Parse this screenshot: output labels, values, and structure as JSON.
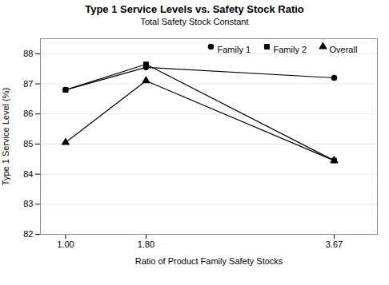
{
  "chart_data": {
    "type": "line",
    "title": "Type 1 Service Levels vs. Safety Stock Ratio",
    "subtitle": "Total Safety Stock Constant",
    "xlabel": "Ratio of Product Family Safety Stocks",
    "ylabel": "Type 1 Service Level (%)",
    "x": [
      1.0,
      1.8,
      3.67
    ],
    "xlim": [
      0.75,
      4.1
    ],
    "xticks": [
      {
        "value": 1.0,
        "label": "1.00"
      },
      {
        "value": 1.8,
        "label": "1.80"
      },
      3.67
    ],
    "ylim": [
      82,
      88.5
    ],
    "yticks": [
      82,
      83,
      84,
      85,
      86,
      87,
      88
    ],
    "grid": "y",
    "legend": "upper right",
    "series": [
      {
        "name": "Family 1",
        "color": "#000000",
        "marker": "circle",
        "values": [
          86.8,
          87.55,
          87.2
        ]
      },
      {
        "name": "Family 2",
        "color": "#000000",
        "marker": "square",
        "values": [
          86.8,
          87.65,
          84.45
        ]
      },
      {
        "name": "Overall",
        "color": "#000000",
        "marker": "triangle",
        "values": [
          85.05,
          87.1,
          84.45
        ]
      }
    ]
  }
}
